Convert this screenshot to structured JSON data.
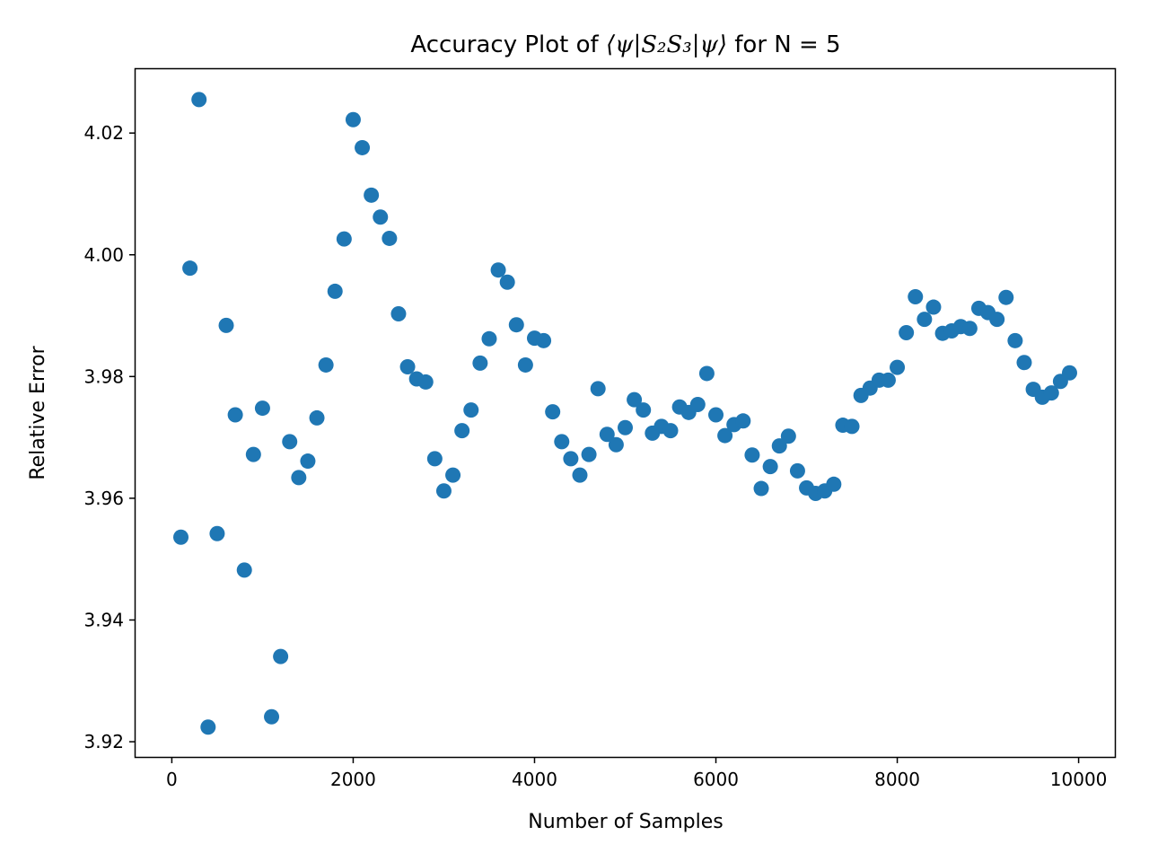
{
  "chart_data": {
    "type": "scatter",
    "title": {
      "prefix": "Accuracy Plot of ",
      "math": "⟨ψ|S₂S₃|ψ⟩",
      "suffix": " for N = 5"
    },
    "xlabel": "Number of Samples",
    "ylabel": "Relative Error",
    "xlim": [
      -400,
      10400
    ],
    "ylim": [
      3.9175,
      4.0305
    ],
    "xticks": [
      0,
      2000,
      4000,
      6000,
      8000,
      10000
    ],
    "xtick_labels": [
      "0",
      "2000",
      "4000",
      "6000",
      "8000",
      "10000"
    ],
    "yticks": [
      3.92,
      3.94,
      3.96,
      3.98,
      4.0,
      4.02
    ],
    "ytick_labels": [
      "3.92",
      "3.94",
      "3.96",
      "3.98",
      "4.00",
      "4.02"
    ],
    "grid": false,
    "marker_color": "#1f77b4",
    "series": [
      {
        "x": [
          100,
          200,
          300,
          400,
          500,
          600,
          700,
          800,
          900,
          1000,
          1100,
          1200,
          1300,
          1400,
          1500,
          1600,
          1700,
          1800,
          1900,
          2000,
          2100,
          2200,
          2300,
          2400,
          2500,
          2600,
          2700,
          2800,
          2900,
          3000,
          3100,
          3200,
          3300,
          3400,
          3500,
          3600,
          3700,
          3800,
          3900,
          4000,
          4100,
          4200,
          4300,
          4400,
          4500,
          4600,
          4700,
          4800,
          4900,
          5000,
          5100,
          5200,
          5300,
          5400,
          5500,
          5600,
          5700,
          5800,
          5900,
          6000,
          6100,
          6200,
          6300,
          6400,
          6500,
          6600,
          6700,
          6800,
          6900,
          7000,
          7100,
          7200,
          7300,
          7400,
          7500,
          7600,
          7700,
          7800,
          7900,
          8000,
          8100,
          8200,
          8300,
          8400,
          8500,
          8600,
          8700,
          8800,
          8900,
          9000,
          9100,
          9200,
          9300,
          9400,
          9500,
          9600,
          9700,
          9800,
          9900
        ],
        "y": [
          3.9536,
          3.9978,
          4.0255,
          3.9224,
          3.9542,
          3.9884,
          3.9737,
          3.9482,
          3.9672,
          3.9748,
          3.9241,
          3.934,
          3.9693,
          3.9634,
          3.9661,
          3.9732,
          3.9819,
          3.994,
          4.0026,
          4.0222,
          4.0176,
          4.0098,
          4.0062,
          4.0027,
          3.9903,
          3.9816,
          3.9796,
          3.9791,
          3.9665,
          3.9612,
          3.9638,
          3.9711,
          3.9745,
          3.9822,
          3.9862,
          3.9975,
          3.9955,
          3.9885,
          3.9819,
          3.9863,
          3.9859,
          3.9742,
          3.9693,
          3.9665,
          3.9638,
          3.9672,
          3.978,
          3.9705,
          3.9688,
          3.9716,
          3.9762,
          3.9745,
          3.9707,
          3.9718,
          3.9711,
          3.975,
          3.9741,
          3.9754,
          3.9805,
          3.9737,
          3.9703,
          3.9721,
          3.9727,
          3.9671,
          3.9616,
          3.9652,
          3.9686,
          3.9702,
          3.9645,
          3.9617,
          3.9608,
          3.9612,
          3.9623,
          3.972,
          3.9718,
          3.9769,
          3.9781,
          3.9794,
          3.9794,
          3.9815,
          3.9872,
          3.9931,
          3.9894,
          3.9914,
          3.9871,
          3.9875,
          3.9882,
          3.9879,
          3.9912,
          3.9905,
          3.9894,
          3.993,
          3.9859,
          3.9823,
          3.9779,
          3.9766,
          3.9773,
          3.9792,
          3.9806
        ]
      }
    ]
  }
}
